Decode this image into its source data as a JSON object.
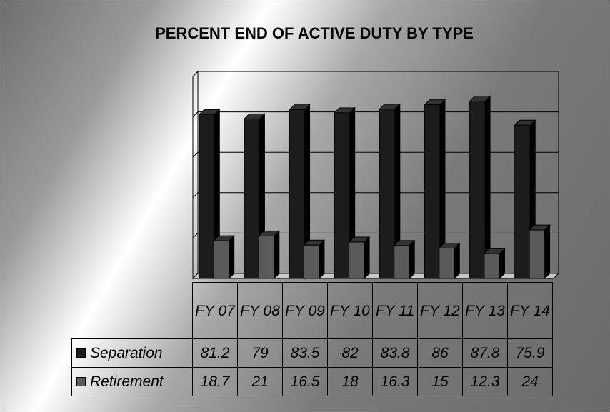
{
  "chart_data": {
    "type": "bar",
    "title": "PERCENT END OF ACTIVE DUTY BY TYPE",
    "categories": [
      "FY 07",
      "FY 08",
      "FY 09",
      "FY 10",
      "FY 11",
      "FY 12",
      "FY 13",
      "FY 14"
    ],
    "series": [
      {
        "name": "Separation",
        "color": "#1c1c1c",
        "values": [
          81.2,
          79,
          83.5,
          82,
          83.8,
          86,
          87.8,
          75.9
        ]
      },
      {
        "name": "Retirement",
        "color": "#5a5a5a",
        "values": [
          18.7,
          21,
          16.5,
          18,
          16.3,
          15,
          12.3,
          24
        ]
      }
    ],
    "ylim": [
      0,
      100
    ],
    "yticks": [
      0,
      20,
      40,
      60,
      80,
      100
    ],
    "grid": true
  }
}
